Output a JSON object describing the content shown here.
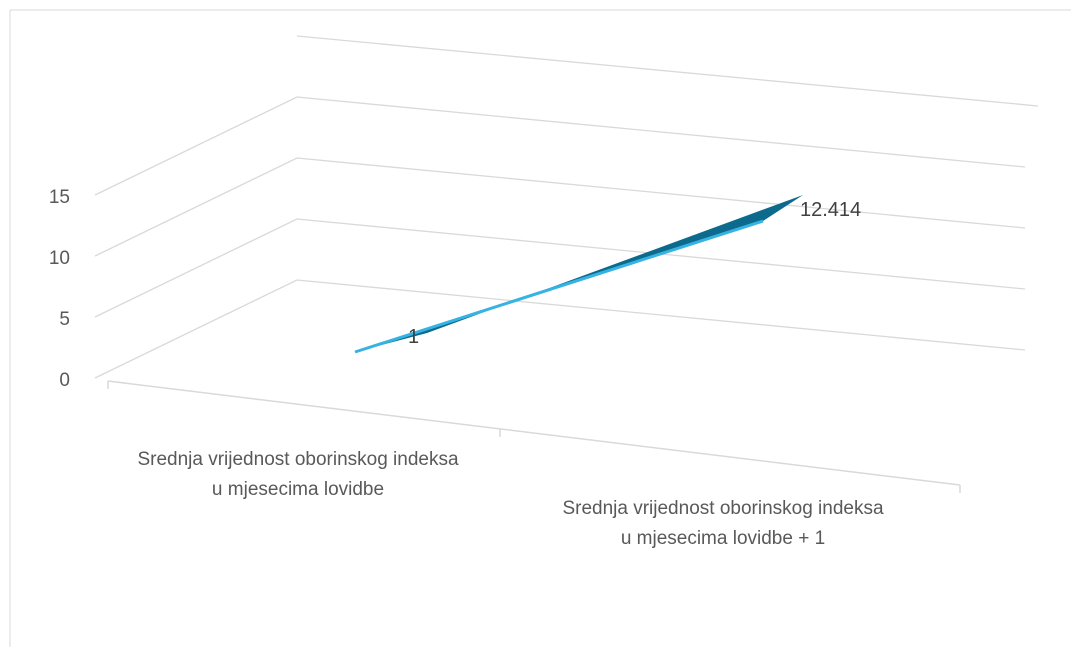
{
  "chart_data": {
    "type": "line",
    "title": "",
    "xlabel": "",
    "ylabel": "",
    "categories": [
      "Srednja vrijednost oborinskog indeksa u mjesecima lovidbe",
      "Srednja vrijednost oborinskog indeksa u mjesecima lovidbe + 1"
    ],
    "series": [
      {
        "values": [
          1,
          12.414
        ]
      }
    ],
    "data_labels": [
      "1",
      "12.414"
    ],
    "yticks": [
      "0",
      "5",
      "10",
      "15"
    ],
    "ylim": [
      0,
      15
    ],
    "grid": true,
    "legend": "none",
    "view": "3d",
    "colors": {
      "series_top": "#0c6b8c",
      "series_edge": "#37b3e3",
      "grid": "#d9d9d9",
      "axis_text": "#595959",
      "label_text": "#404040"
    }
  }
}
